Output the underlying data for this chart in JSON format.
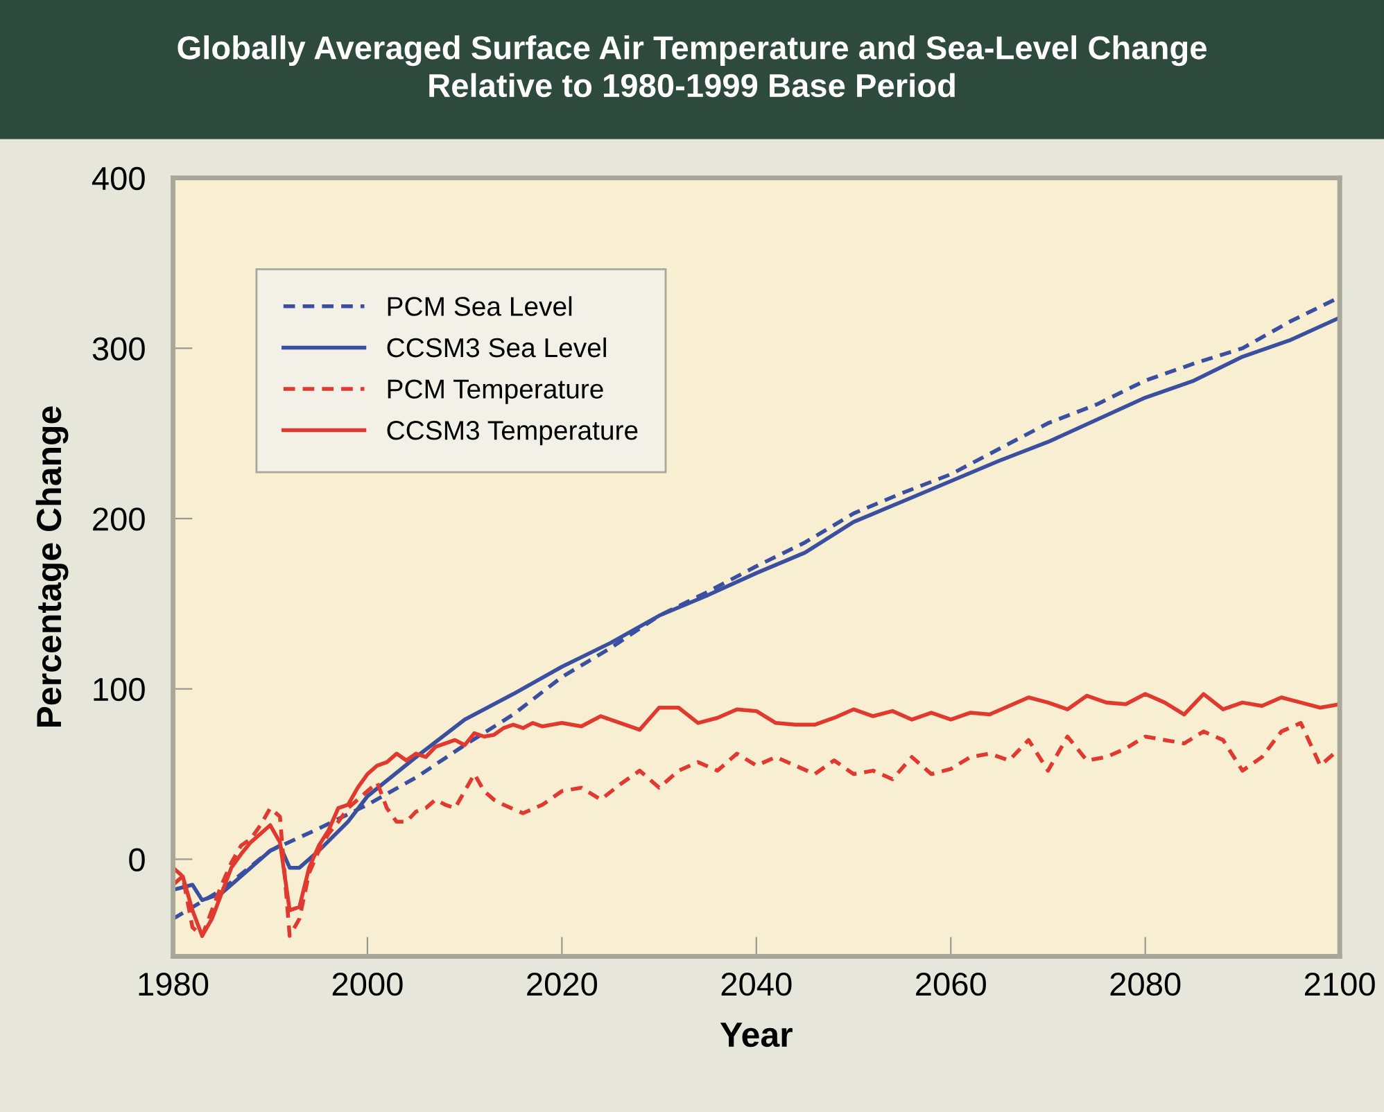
{
  "chart_data": {
    "type": "line",
    "title": "Globally Averaged Surface Air Temperature and Sea-Level Change\nRelative to 1980-1999 Base Period",
    "xlabel": "Year",
    "ylabel": "Percentage Change",
    "xlim": [
      1980,
      2100
    ],
    "ylim": [
      -57,
      400
    ],
    "xticks": [
      1980,
      2000,
      2020,
      2040,
      2060,
      2080,
      2100
    ],
    "yticks": [
      0,
      100,
      200,
      300,
      400
    ],
    "grid": false,
    "legend": "top left",
    "series": [
      {
        "name": "PCM Sea Level",
        "color": "#3a4fa0",
        "line_style": "dashed",
        "x": [
          1980,
          1985,
          1990,
          1995,
          2000,
          2005,
          2010,
          2015,
          2020,
          2025,
          2030,
          2035,
          2040,
          2045,
          2050,
          2055,
          2060,
          2065,
          2070,
          2075,
          2080,
          2085,
          2090,
          2095,
          2100
        ],
        "values": [
          -35,
          -18,
          5,
          18,
          32,
          48,
          67,
          85,
          107,
          124,
          143,
          157,
          172,
          186,
          203,
          215,
          226,
          241,
          256,
          267,
          281,
          291,
          300,
          316,
          330
        ]
      },
      {
        "name": "CCSM3 Sea Level",
        "color": "#3a4fa0",
        "line_style": "solid",
        "x": [
          1980,
          1982,
          1983,
          1985,
          1988,
          1990,
          1991,
          1992,
          1993,
          1995,
          1998,
          2000,
          2005,
          2010,
          2015,
          2020,
          2025,
          2030,
          2035,
          2040,
          2045,
          2050,
          2055,
          2060,
          2065,
          2070,
          2075,
          2080,
          2085,
          2090,
          2095,
          2100
        ],
        "values": [
          -18,
          -15,
          -24,
          -20,
          -5,
          5,
          8,
          -5,
          -5,
          5,
          22,
          37,
          60,
          82,
          97,
          113,
          127,
          143,
          155,
          168,
          180,
          198,
          210,
          222,
          234,
          245,
          258,
          271,
          281,
          295,
          305,
          318
        ]
      },
      {
        "name": "PCM Temperature",
        "color": "#e03a30",
        "line_style": "dashed",
        "x": [
          1980,
          1981,
          1982,
          1983,
          1984,
          1985,
          1986,
          1987,
          1988,
          1989,
          1990,
          1991,
          1992,
          1993,
          1994,
          1995,
          1996,
          1997,
          1998,
          1999,
          2000,
          2001,
          2002,
          2003,
          2004,
          2005,
          2006,
          2007,
          2008,
          2009,
          2010,
          2011,
          2012,
          2013,
          2014,
          2016,
          2018,
          2020,
          2022,
          2024,
          2026,
          2028,
          2030,
          2032,
          2034,
          2036,
          2038,
          2040,
          2042,
          2044,
          2046,
          2048,
          2050,
          2052,
          2054,
          2056,
          2058,
          2060,
          2062,
          2064,
          2066,
          2068,
          2070,
          2072,
          2074,
          2076,
          2078,
          2080,
          2082,
          2084,
          2086,
          2088,
          2090,
          2092,
          2094,
          2096,
          2098,
          2100
        ],
        "values": [
          -5,
          -10,
          -40,
          -45,
          -30,
          -15,
          -2,
          8,
          12,
          20,
          30,
          25,
          -45,
          -35,
          -8,
          5,
          15,
          22,
          30,
          35,
          40,
          45,
          30,
          22,
          22,
          28,
          30,
          35,
          32,
          30,
          40,
          50,
          40,
          35,
          32,
          27,
          32,
          40,
          42,
          35,
          44,
          52,
          42,
          52,
          57,
          52,
          62,
          55,
          60,
          55,
          50,
          58,
          50,
          52,
          47,
          60,
          50,
          53,
          60,
          62,
          58,
          70,
          52,
          72,
          58,
          60,
          65,
          72,
          70,
          68,
          75,
          70,
          52,
          60,
          75,
          80,
          55,
          65
        ]
      },
      {
        "name": "CCSM3 Temperature",
        "color": "#e03a30",
        "line_style": "solid",
        "x": [
          1980,
          1981,
          1982,
          1983,
          1984,
          1985,
          1986,
          1987,
          1988,
          1989,
          1990,
          1991,
          1992,
          1993,
          1994,
          1995,
          1996,
          1997,
          1998,
          1999,
          2000,
          2001,
          2002,
          2003,
          2004,
          2005,
          2006,
          2007,
          2008,
          2009,
          2010,
          2011,
          2012,
          2013,
          2014,
          2015,
          2016,
          2017,
          2018,
          2020,
          2022,
          2024,
          2026,
          2028,
          2030,
          2032,
          2034,
          2036,
          2038,
          2040,
          2042,
          2044,
          2046,
          2048,
          2050,
          2052,
          2054,
          2056,
          2058,
          2060,
          2062,
          2064,
          2066,
          2068,
          2070,
          2072,
          2074,
          2076,
          2078,
          2080,
          2082,
          2084,
          2086,
          2088,
          2090,
          2092,
          2094,
          2096,
          2098,
          2100
        ],
        "values": [
          -15,
          -10,
          -30,
          -45,
          -35,
          -20,
          -5,
          3,
          10,
          15,
          20,
          10,
          -30,
          -28,
          -5,
          8,
          17,
          30,
          32,
          42,
          50,
          55,
          57,
          62,
          58,
          62,
          60,
          66,
          68,
          70,
          67,
          74,
          72,
          73,
          77,
          79,
          77,
          80,
          78,
          80,
          78,
          84,
          80,
          76,
          89,
          89,
          80,
          83,
          88,
          87,
          80,
          79,
          79,
          83,
          88,
          84,
          87,
          82,
          86,
          82,
          86,
          85,
          90,
          95,
          92,
          88,
          96,
          92,
          91,
          97,
          92,
          85,
          97,
          88,
          92,
          90,
          95,
          92,
          89,
          91
        ]
      }
    ]
  }
}
